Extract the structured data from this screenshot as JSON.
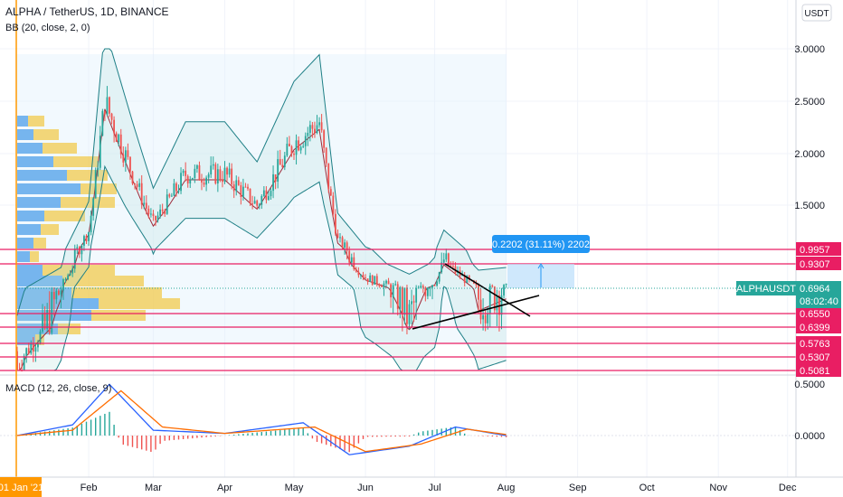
{
  "header": {
    "symbol_title": "ALPHA / TetherUS, 1D, BINANCE",
    "bb_label": "BB (20, close, 2, 0)",
    "currency_button": "USDT"
  },
  "macd_label": "MACD (12, 26, close, 9)",
  "measure_label": "0.2202 (31.11%) 2202",
  "symbol_tag": "ALPHAUSDT",
  "last_price": "0.6964",
  "countdown": "08:02:40",
  "first_date_label": "01 Jan '21",
  "colors": {
    "up": "#26a69a",
    "down": "#ef5350",
    "level_line": "#e91e63",
    "bb_band": "#1e7f86",
    "bb_basis": "#9c2a3a",
    "macd": "#2962ff",
    "signal": "#ff6d00",
    "vp_blue": "#4c9ee8",
    "vp_yellow": "#f2c94c",
    "measure": "#2196f3"
  },
  "chart_data": [
    {
      "type": "candlestick",
      "title": "ALPHA / TetherUS, 1D, BINANCE",
      "overlay": "BB (20, close, 2, 0)",
      "y_scale": "log",
      "ylim": [
        0.5,
        3.2
      ],
      "y_ticks": [
        "3.0000",
        "2.5000",
        "2.0000",
        "1.5000"
      ],
      "x_ticks": [
        "Feb",
        "Mar",
        "Apr",
        "May",
        "Jun",
        "Jul",
        "Aug",
        "Sep",
        "Oct",
        "Nov",
        "Dec"
      ],
      "x_range": [
        "2021-01-01",
        "2021-12-20"
      ],
      "key_levels": [
        {
          "value": 0.9957,
          "label": "0.9957"
        },
        {
          "value": 0.9307,
          "label": "0.9307"
        },
        {
          "value": 0.655,
          "label": "0.6550"
        },
        {
          "value": 0.6399,
          "label": "0.6399"
        },
        {
          "value": 0.5763,
          "label": "0.5763"
        },
        {
          "value": 0.5307,
          "label": "0.5307"
        },
        {
          "value": 0.5081,
          "label": "0.5081"
        }
      ],
      "last_close": 0.6964,
      "closes_monthly": [
        {
          "date": "2021-01-05",
          "close": 0.55
        },
        {
          "date": "2021-01-20",
          "close": 0.7
        },
        {
          "date": "2021-02-01",
          "close": 1.2
        },
        {
          "date": "2021-02-08",
          "close": 2.5
        },
        {
          "date": "2021-02-20",
          "close": 1.8
        },
        {
          "date": "2021-03-01",
          "close": 1.3
        },
        {
          "date": "2021-03-15",
          "close": 1.8
        },
        {
          "date": "2021-04-01",
          "close": 1.8
        },
        {
          "date": "2021-04-15",
          "close": 1.5
        },
        {
          "date": "2021-05-01",
          "close": 2.1
        },
        {
          "date": "2021-05-12",
          "close": 2.3
        },
        {
          "date": "2021-05-20",
          "close": 1.1
        },
        {
          "date": "2021-06-01",
          "close": 0.8
        },
        {
          "date": "2021-06-20",
          "close": 0.65
        },
        {
          "date": "2021-07-01",
          "close": 0.75
        },
        {
          "date": "2021-07-05",
          "close": 0.95
        },
        {
          "date": "2021-07-20",
          "close": 0.68
        },
        {
          "date": "2021-08-01",
          "close": 0.7
        }
      ]
    },
    {
      "type": "line",
      "title": "MACD (12, 26, close, 9)",
      "ylim": [
        -0.2,
        0.55
      ],
      "y_ticks": [
        "0.5000",
        "0.0000"
      ],
      "series": [
        {
          "name": "MACD",
          "points": [
            [
              "2021-01-01",
              0.0
            ],
            [
              "2021-01-25",
              0.1
            ],
            [
              "2021-02-10",
              0.48
            ],
            [
              "2021-03-01",
              0.05
            ],
            [
              "2021-04-01",
              0.02
            ],
            [
              "2021-05-05",
              0.12
            ],
            [
              "2021-05-25",
              -0.18
            ],
            [
              "2021-06-20",
              -0.1
            ],
            [
              "2021-07-10",
              0.08
            ],
            [
              "2021-08-01",
              0.0
            ]
          ]
        },
        {
          "name": "Signal",
          "points": [
            [
              "2021-01-01",
              0.0
            ],
            [
              "2021-01-25",
              0.05
            ],
            [
              "2021-02-15",
              0.42
            ],
            [
              "2021-03-05",
              0.08
            ],
            [
              "2021-04-01",
              0.02
            ],
            [
              "2021-05-10",
              0.08
            ],
            [
              "2021-06-01",
              -0.15
            ],
            [
              "2021-06-25",
              -0.08
            ],
            [
              "2021-07-15",
              0.06
            ],
            [
              "2021-08-01",
              0.01
            ]
          ]
        }
      ]
    }
  ]
}
